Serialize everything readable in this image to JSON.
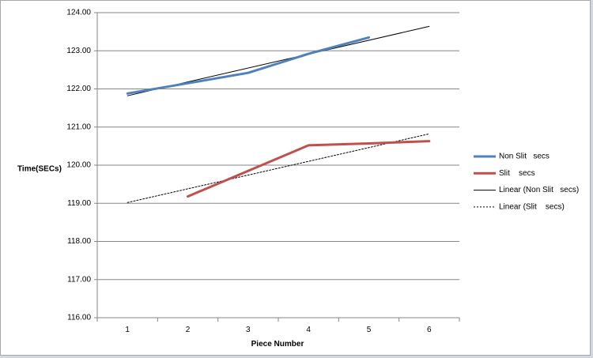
{
  "chart_data": {
    "type": "line",
    "title": "",
    "xlabel": "Piece Number",
    "ylabel": "Time(SECs)",
    "categories": [
      "1",
      "2",
      "3",
      "4",
      "5",
      "6"
    ],
    "ylim": [
      116,
      124
    ],
    "ytick_step": 1,
    "ytick_labels": [
      "116.00",
      "117.00",
      "118.00",
      "119.00",
      "120.00",
      "121.00",
      "122.00",
      "123.00",
      "124.00"
    ],
    "grid": true,
    "legend_position": "right",
    "series": [
      {
        "name": "Non Slit   secs",
        "x": [
          1,
          2,
          3,
          4,
          5
        ],
        "values": [
          121.88,
          122.15,
          122.42,
          122.92,
          123.35
        ],
        "color": "#4f81bd",
        "style": "solid",
        "kind": "data"
      },
      {
        "name": "Slit    secs",
        "x": [
          2,
          3,
          4,
          5,
          6
        ],
        "values": [
          119.18,
          119.85,
          120.52,
          120.57,
          120.63
        ],
        "color": "#c0504d",
        "style": "solid",
        "kind": "data"
      },
      {
        "name": "Linear (Non Slit   secs)",
        "x": [
          1,
          6
        ],
        "values": [
          121.82,
          123.64
        ],
        "color": "#000000",
        "style": "solid",
        "kind": "trend"
      },
      {
        "name": "Linear (Slit    secs)",
        "x": [
          1,
          6
        ],
        "values": [
          119.02,
          120.82
        ],
        "color": "#000000",
        "style": "dotted",
        "kind": "trend"
      }
    ]
  }
}
